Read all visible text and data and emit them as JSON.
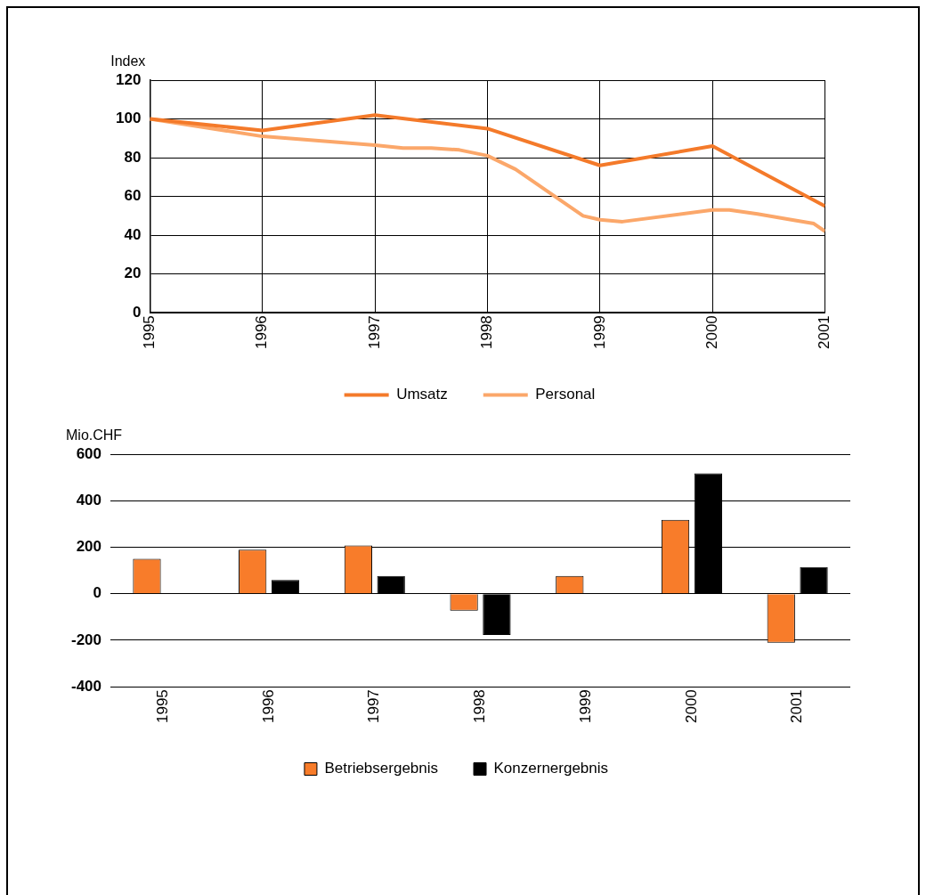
{
  "chart_data": [
    {
      "type": "line",
      "ylabel": "Index",
      "xlim": [
        1995,
        2001
      ],
      "xticks": [
        1995,
        1996,
        1997,
        1998,
        1999,
        2000,
        2001
      ],
      "ylim": [
        0,
        120
      ],
      "yticks": [
        0,
        20,
        40,
        60,
        80,
        100,
        120
      ],
      "grid": true,
      "legend": "bottom",
      "marker": "none",
      "series": [
        {
          "name": "Umsatz",
          "color": "#f47a2a",
          "x": [
            1995,
            1996,
            1997,
            1998,
            1999,
            2000,
            2001
          ],
          "values": [
            100,
            94,
            102,
            95,
            76,
            86,
            55
          ]
        },
        {
          "name": "Personal",
          "color": "#fba76a",
          "x": [
            1995,
            1996,
            1997,
            1997.25,
            1997.5,
            1997.75,
            1998,
            1998.25,
            1998.6,
            1998.85,
            1999,
            1999.2,
            2000,
            2000.15,
            2000.4,
            2000.7,
            2000.9,
            2001
          ],
          "values": [
            100,
            91,
            86.5,
            85,
            85,
            84,
            81,
            74,
            60,
            50,
            48,
            47,
            53,
            53,
            51,
            48,
            46,
            42
          ]
        }
      ]
    },
    {
      "type": "bar",
      "ylabel": "Mio.CHF",
      "categories": [
        "1995",
        "1996",
        "1997",
        "1998",
        "1999",
        "2000",
        "2001"
      ],
      "ylim": [
        -400,
        600
      ],
      "yticks": [
        -400,
        -200,
        0,
        200,
        400,
        600
      ],
      "grid": "y",
      "legend": "bottom",
      "series": [
        {
          "name": "Betriebsergebnis",
          "color": "#f87c2a",
          "values": [
            150,
            189,
            208,
            -73,
            76,
            318,
            -211
          ]
        },
        {
          "name": "Konzernergebnis",
          "color": "#000000",
          "values": [
            null,
            59,
            76,
            -177,
            null,
            518,
            115
          ]
        }
      ]
    }
  ]
}
